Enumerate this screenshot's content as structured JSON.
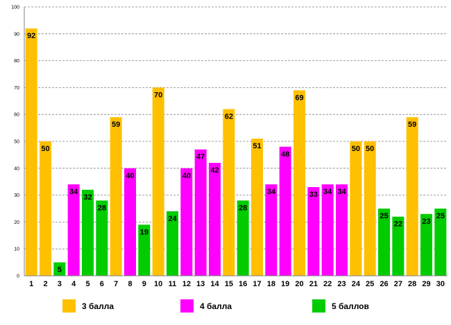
{
  "chart_data": {
    "type": "bar",
    "title": "",
    "xlabel": "",
    "ylabel": "",
    "ylim": [
      0,
      100
    ],
    "ytick_step": 10,
    "grid": true,
    "legend_position": "bottom",
    "categories": [
      "1",
      "2",
      "3",
      "4",
      "5",
      "6",
      "7",
      "8",
      "9",
      "10",
      "11",
      "12",
      "13",
      "14",
      "15",
      "16",
      "17",
      "18",
      "19",
      "20",
      "21",
      "22",
      "23",
      "24",
      "25",
      "26",
      "27",
      "28",
      "29",
      "30"
    ],
    "values": [
      92,
      50,
      5,
      34,
      32,
      28,
      59,
      40,
      19,
      70,
      24,
      40,
      47,
      42,
      62,
      28,
      51,
      34,
      48,
      69,
      33,
      34,
      34,
      50,
      50,
      25,
      22,
      59,
      23,
      25
    ],
    "value_labels": [
      "92",
      "50",
      "5",
      "34",
      "32",
      "28",
      "59",
      "40",
      "19",
      "70",
      "24",
      "40",
      "47",
      "42",
      "62",
      "28",
      "51",
      "34",
      "48",
      "69",
      "33",
      "34",
      "34",
      "50",
      "50",
      "25",
      "22",
      "59",
      "23",
      "25"
    ],
    "series_index": [
      0,
      0,
      2,
      1,
      2,
      2,
      0,
      1,
      2,
      0,
      2,
      1,
      1,
      1,
      0,
      2,
      0,
      1,
      1,
      0,
      1,
      1,
      1,
      0,
      0,
      2,
      2,
      0,
      2,
      2
    ],
    "series": [
      {
        "name": "3 балла",
        "color": "#FFC000"
      },
      {
        "name": "4 балла",
        "color": "#FF00FF"
      },
      {
        "name": "5 баллов",
        "color": "#00CC00"
      }
    ]
  }
}
